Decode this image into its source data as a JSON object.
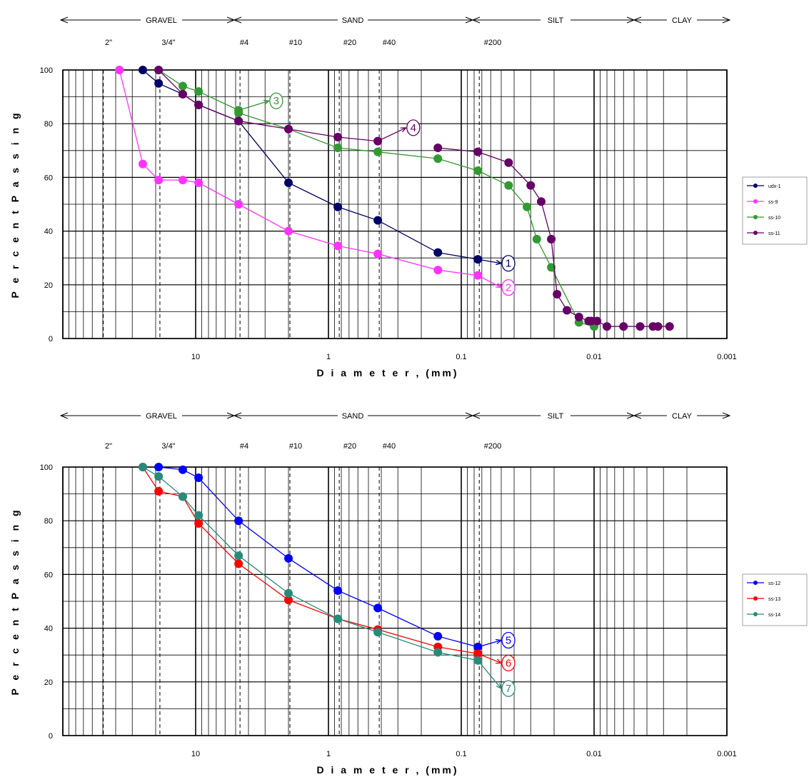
{
  "chart_data": [
    {
      "type": "line",
      "title": "",
      "xlabel": "D i a m e t e r , (mm)",
      "ylabel": "P e r c e n t  P a s s i n g",
      "x_scale": "log",
      "x_reversed": true,
      "xlim": [
        100,
        0.001
      ],
      "ylim": [
        0,
        100
      ],
      "x_tick_labels": [
        "10",
        "1",
        "0.1",
        "0.01",
        "0.001"
      ],
      "y_tick_labels": [
        "0",
        "20",
        "40",
        "60",
        "80",
        "100"
      ],
      "soil_classes": [
        "GRAVEL",
        "SAND",
        "SILT",
        "CLAY"
      ],
      "sieves": [
        "2\"",
        "3/4\"",
        "#4",
        "#10",
        "#20",
        "#40",
        "#200"
      ],
      "legend_position": "right",
      "series": [
        {
          "name": "udx-1",
          "color": "#000066",
          "label": "1",
          "x": [
            25,
            19,
            12.5,
            9.5,
            4.75,
            2,
            0.85,
            0.425,
            0.15,
            0.075,
            0.05
          ],
          "y": [
            100,
            95,
            91,
            87,
            81,
            58,
            49,
            44,
            32,
            29.5,
            28
          ]
        },
        {
          "name": "ss-9",
          "color": "#ff33ff",
          "label": "2",
          "x": [
            37.5,
            25,
            19,
            12.5,
            9.5,
            4.75,
            2,
            0.85,
            0.425,
            0.15,
            0.075,
            0.05
          ],
          "y": [
            100,
            65,
            59,
            59,
            58,
            50,
            40,
            34.5,
            31.5,
            25.5,
            23.5,
            19
          ]
        },
        {
          "name": "ss-10",
          "color": "#339933",
          "label": "3",
          "x": [
            19,
            12.5,
            9.5,
            4.75,
            2.8
          ],
          "y": [
            100,
            94,
            92,
            85,
            88.5
          ]
        },
        {
          "name": "ss-10",
          "color": "#339933",
          "label": "",
          "x": [
            4.75,
            2,
            0.85,
            0.425,
            0.15,
            0.075,
            0.044,
            0.032,
            0.027,
            0.021,
            0.013,
            0.01
          ],
          "y": [
            84,
            78,
            71,
            69.5,
            67,
            62.5,
            57,
            49,
            37,
            26.5,
            6,
            4.5
          ]
        },
        {
          "name": "ss-11",
          "color": "#660066",
          "label": "4",
          "x": [
            19,
            12.5,
            9.5,
            4.75,
            2,
            0.85,
            0.425,
            0.26
          ],
          "y": [
            100,
            91,
            87,
            81,
            78,
            75,
            73.5,
            78.5
          ]
        },
        {
          "name": "ss-11",
          "color": "#660066",
          "label": "",
          "x": [
            0.15,
            0.075,
            0.044,
            0.03,
            0.025,
            0.021,
            0.019,
            0.016,
            0.013,
            0.011,
            0.0105,
            0.0095,
            0.008,
            0.006,
            0.0045,
            0.0036,
            0.0033,
            0.0027
          ],
          "y": [
            71,
            69.5,
            65.5,
            57,
            51,
            37,
            16.5,
            10.5,
            8,
            6.5,
            6.5,
            6.5,
            4.5,
            4.5,
            4.5,
            4.5,
            4.5,
            4.5
          ]
        }
      ]
    },
    {
      "type": "line",
      "title": "",
      "xlabel": "D i a m e t e r , (mm)",
      "ylabel": "P e r c e n t  P a s s i n g",
      "x_scale": "log",
      "x_reversed": true,
      "xlim": [
        100,
        0.001
      ],
      "ylim": [
        0,
        100
      ],
      "x_tick_labels": [
        "10",
        "1",
        "0.1",
        "0.01",
        "0.001"
      ],
      "y_tick_labels": [
        "0",
        "20",
        "40",
        "60",
        "80",
        "100"
      ],
      "soil_classes": [
        "GRAVEL",
        "SAND",
        "SILT",
        "CLAY"
      ],
      "sieves": [
        "2\"",
        "3/4\"",
        "#4",
        "#10",
        "#20",
        "#40",
        "#200"
      ],
      "legend_position": "right",
      "series": [
        {
          "name": "ss-12",
          "color": "#0000ff",
          "label": "5",
          "x": [
            19,
            12.5,
            9.5,
            4.75,
            2,
            0.85,
            0.425,
            0.15,
            0.075,
            0.05
          ],
          "y": [
            100,
            99,
            96,
            80,
            66,
            54,
            47.5,
            37,
            33,
            35.5
          ]
        },
        {
          "name": "ss-13",
          "color": "#ff0000",
          "label": "6",
          "x": [
            25,
            19,
            12.5,
            9.5,
            4.75,
            2,
            0.85,
            0.425,
            0.15,
            0.075,
            0.05
          ],
          "y": [
            100,
            91,
            89,
            79,
            64,
            50.5,
            43.5,
            39.5,
            33,
            30.5,
            27
          ]
        },
        {
          "name": "ss-14",
          "color": "#2a8a7a",
          "label": "7",
          "x": [
            25,
            19,
            12.5,
            9.5,
            4.75,
            2,
            0.85,
            0.425,
            0.15,
            0.075,
            0.05
          ],
          "y": [
            100,
            96.5,
            89,
            82,
            67,
            53,
            43.5,
            38.5,
            31,
            28,
            17.5
          ]
        }
      ]
    }
  ]
}
